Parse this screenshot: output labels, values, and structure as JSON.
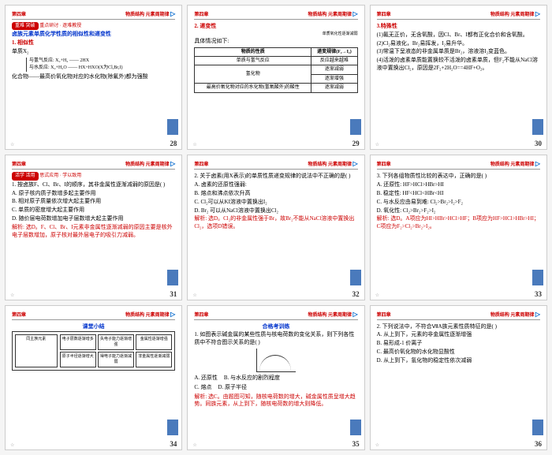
{
  "header": {
    "left": "第四章",
    "right": "物质结构 元素周期律"
  },
  "slides": [
    {
      "num": "28",
      "badge": "重难 突破",
      "sub": "重点研讨 · 逐难教授",
      "title": "卤族元素单质化学性质的相似性和递变性",
      "h1": "1. 相似性",
      "lines": [
        "单质X₂",
        "化合物——最高价氧化物对应的水化物(除氟外)都为强酸"
      ],
      "bracket": [
        "与氢气反应: X₂+H₂ —— 2HX",
        "与水反应: X₂+H₂O —— HX+HXO(X为Cl,Br,I)"
      ]
    },
    {
      "num": "29",
      "h1": "2. 递变性",
      "sub2": "单质氧化性逐渐减弱",
      "p1": "具体情况如下:",
      "table": {
        "headers": [
          "物质的性质",
          "递变规律(F₂→I₂)"
        ],
        "rows": [
          [
            "单质与氢气反应",
            "反应越来越难"
          ],
          [
            "氢化物",
            "稳定性",
            "逐渐减弱"
          ],
          [
            "",
            "还原性",
            "逐渐增强"
          ],
          [
            "最高价氧化物对应的水化物(氢氧酸外)的酸性",
            "逐渐减弱"
          ]
        ]
      }
    },
    {
      "num": "30",
      "h1": "3.特殊性",
      "lines": [
        "(1)氟无正价，无含氧酸，因Cl、Br、I都有正化合价和含氧酸。",
        "(2)Cl₂易液化，Br₂易挥发，I₂易升华。",
        "(3)常温下呈液态的非金属单质是Br₂，溶液溶I₂变蓝色。",
        "(4)活泼的卤素单质能置换较不活泼的卤素单质，但F₂不能从NaCl溶液中置换出Cl₂，原因是2F₂+2H₂O==4HF+O₂。"
      ]
    },
    {
      "num": "31",
      "badge": "活学 活用",
      "sub": "思式应用 · 学以致用",
      "h1": "1. 按卤族F、Cl、Br、I的顺序，其非金属性逐渐减弱的原因是( )",
      "opts": [
        "A. 原子核内质子数增多起主要作用",
        "B. 相对原子质量依次增大起主要作用",
        "C. 单质的密度增大起主要作用",
        "D. 随价层电荷数增加电子层数增大起主要作用"
      ],
      "ans": "解析: 选D。F、Cl、Br、I元素非金属性逐渐减弱的原因主要是核外电子层数增加，原子核对最外层电子的吸引力减弱。"
    },
    {
      "num": "32",
      "h1": "2. 关于卤素(用X表示)的单质性质递变规律的说法中不正确的是( )",
      "opts": [
        "A. 卤素的还原性强弱:",
        "B. 熔点和沸点依次升高",
        "C. Cl₂可以从KI溶液中置换出I₂",
        "D. Br₂ 可以从NaCl溶液中置换出Cl₂"
      ],
      "ans": "解析: 选D。Cl₂的非金属性强于Br，故Br₂不能从NaCl溶液中置换出Cl₂，选项D错误。"
    },
    {
      "num": "33",
      "h1": "3. 下列各组物质性比较的表达中，正确的是( )",
      "opts": [
        "A. 还原性: HF>HCl>HBr>HI",
        "B. 稳定性: HF<HCl<HBr<HI",
        "C. 与水反应由易到难: Cl₂>Br₂>I₂>F₂",
        "D. 氧化性: Cl₂>Br₂>F₂>I₂"
      ],
      "ans": "解析: 选D。A项应为HI>HBr>HCl>HF；B项应为HF>HCl>HBr>HI；C项应为F₂>Cl₂>Br₂>I₂。"
    },
    {
      "num": "34",
      "title2": "课堂小结",
      "diagram": {
        "left": "同主族元素",
        "cols": [
          "电子层数逐渐增多",
          "失电子能力逐渐增强",
          "金属性逐渐增强",
          "原子半径逐渐增大",
          "得电子能力逐渐减弱",
          "非金属性逐渐减弱"
        ]
      }
    },
    {
      "num": "35",
      "title2": "合格考训练",
      "h1": "1. 如图表示碱金属的某些性质与核电荷数的变化关系，则下列各性质中不符合图示关系的是( )",
      "opts": [
        "A. 还原性",
        "B. 与水反应的剧烈程度",
        "C. 熔点",
        "D. 原子半径"
      ],
      "ans": "解析: 选C。由题图可知，随核电荷数的增大，碱金属性质呈增大趋势。同族元素，从上到下，随核电荷数的增大则降低。",
      "hasGraph": true
    },
    {
      "num": "36",
      "h1": "2. 下列说法中，不符合ⅦA族元素性质特征的是( )",
      "opts": [
        "A. 从上到下，元素的非金属性逐渐增强",
        "B. 易形成-1 价离子",
        "C. 最高价氧化物的水化物显酸性",
        "D. 从上到下，氢化物的稳定性依次减弱"
      ]
    }
  ]
}
